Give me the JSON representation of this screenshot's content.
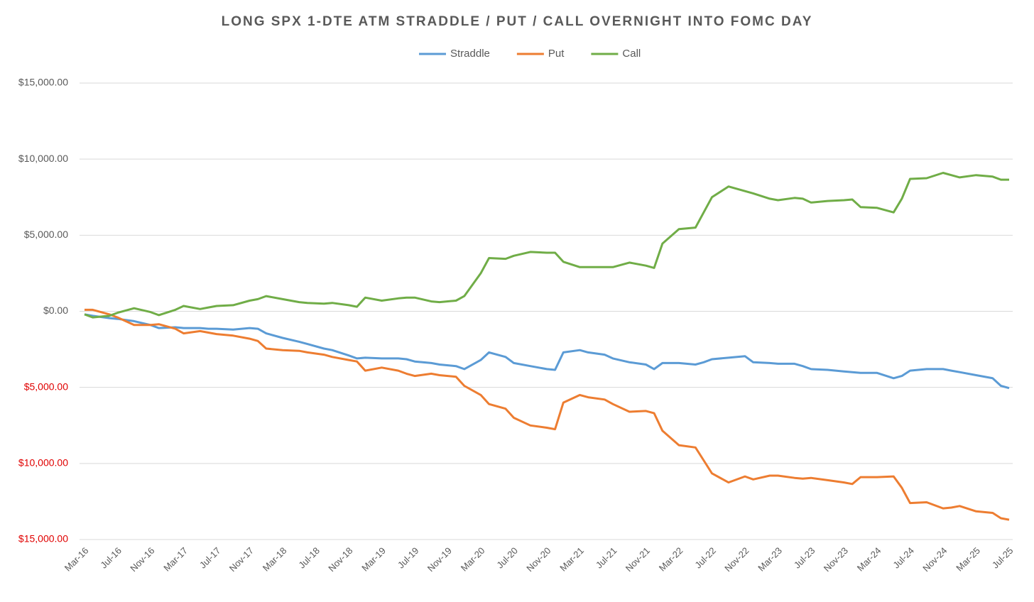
{
  "chart_data": {
    "type": "line",
    "title": "LONG SPX 1-DTE ATM STRADDLE / PUT / CALL OVERNIGHT INTO FOMC DAY",
    "legend": "top",
    "grid": true,
    "x": [
      "2016-03",
      "2016-04",
      "2016-06",
      "2016-07",
      "2016-09",
      "2016-11",
      "2016-12",
      "2017-02",
      "2017-03",
      "2017-05",
      "2017-06",
      "2017-07",
      "2017-09",
      "2017-11",
      "2017-12",
      "2018-01",
      "2018-03",
      "2018-05",
      "2018-06",
      "2018-08",
      "2018-09",
      "2018-11",
      "2018-12",
      "2019-01",
      "2019-03",
      "2019-05",
      "2019-06",
      "2019-07",
      "2019-09",
      "2019-10",
      "2019-12",
      "2020-01",
      "2020-03",
      "2020-04",
      "2020-06",
      "2020-07",
      "2020-09",
      "2020-11",
      "2020-12",
      "2021-01",
      "2021-03",
      "2021-04",
      "2021-06",
      "2021-07",
      "2021-09",
      "2021-11",
      "2021-12",
      "2022-01",
      "2022-03",
      "2022-05",
      "2022-06",
      "2022-07",
      "2022-09",
      "2022-11",
      "2022-12",
      "2023-02",
      "2023-03",
      "2023-05",
      "2023-06",
      "2023-07",
      "2023-09",
      "2023-11",
      "2023-12",
      "2024-01",
      "2024-03",
      "2024-05",
      "2024-06",
      "2024-07",
      "2024-09",
      "2024-11",
      "2024-12",
      "2025-01",
      "2025-03",
      "2025-05",
      "2025-06",
      "2025-07"
    ],
    "xlim": [
      "2016-03",
      "2025-07"
    ],
    "xticks": [
      {
        "value": "2016-03",
        "label": "Mar-16"
      },
      {
        "value": "2016-07",
        "label": "Jul-16"
      },
      {
        "value": "2016-11",
        "label": "Nov-16"
      },
      {
        "value": "2017-03",
        "label": "Mar-17"
      },
      {
        "value": "2017-07",
        "label": "Jul-17"
      },
      {
        "value": "2017-11",
        "label": "Nov-17"
      },
      {
        "value": "2018-03",
        "label": "Mar-18"
      },
      {
        "value": "2018-07",
        "label": "Jul-18"
      },
      {
        "value": "2018-11",
        "label": "Nov-18"
      },
      {
        "value": "2019-03",
        "label": "Mar-19"
      },
      {
        "value": "2019-07",
        "label": "Jul-19"
      },
      {
        "value": "2019-11",
        "label": "Nov-19"
      },
      {
        "value": "2020-03",
        "label": "Mar-20"
      },
      {
        "value": "2020-07",
        "label": "Jul-20"
      },
      {
        "value": "2020-11",
        "label": "Nov-20"
      },
      {
        "value": "2021-03",
        "label": "Mar-21"
      },
      {
        "value": "2021-07",
        "label": "Jul-21"
      },
      {
        "value": "2021-11",
        "label": "Nov-21"
      },
      {
        "value": "2022-03",
        "label": "Mar-22"
      },
      {
        "value": "2022-07",
        "label": "Jul-22"
      },
      {
        "value": "2022-11",
        "label": "Nov-22"
      },
      {
        "value": "2023-03",
        "label": "Mar-23"
      },
      {
        "value": "2023-07",
        "label": "Jul-23"
      },
      {
        "value": "2023-11",
        "label": "Nov-23"
      },
      {
        "value": "2024-03",
        "label": "Mar-24"
      },
      {
        "value": "2024-07",
        "label": "Jul-24"
      },
      {
        "value": "2024-11",
        "label": "Nov-24"
      },
      {
        "value": "2025-03",
        "label": "Mar-25"
      },
      {
        "value": "2025-07",
        "label": "Jul-25"
      }
    ],
    "ylim": [
      -15000,
      15000
    ],
    "yticks": [
      {
        "value": 15000,
        "label": "$15,000.00"
      },
      {
        "value": 10000,
        "label": "$10,000.00"
      },
      {
        "value": 5000,
        "label": "$5,000.00"
      },
      {
        "value": 0,
        "label": "$0.00"
      },
      {
        "value": -5000,
        "label": "$5,000.00"
      },
      {
        "value": -10000,
        "label": "$10,000.00"
      },
      {
        "value": -15000,
        "label": "$15,000.00"
      }
    ],
    "series": [
      {
        "name": "Straddle",
        "color": "#5b9bd5",
        "values": [
          -200,
          -300,
          -450,
          -500,
          -650,
          -900,
          -1100,
          -1050,
          -1100,
          -1100,
          -1150,
          -1150,
          -1200,
          -1100,
          -1150,
          -1450,
          -1750,
          -2000,
          -2150,
          -2450,
          -2550,
          -2900,
          -3100,
          -3050,
          -3100,
          -3100,
          -3150,
          -3300,
          -3400,
          -3500,
          -3600,
          -3800,
          -3200,
          -2700,
          -3000,
          -3400,
          -3600,
          -3800,
          -3850,
          -2700,
          -2550,
          -2700,
          -2850,
          -3100,
          -3350,
          -3500,
          -3800,
          -3400,
          -3400,
          -3500,
          -3350,
          -3150,
          -3050,
          -2950,
          -3350,
          -3400,
          -3450,
          -3450,
          -3600,
          -3800,
          -3850,
          -3950,
          -4000,
          -4050,
          -4050,
          -4400,
          -4250,
          -3900,
          -3800,
          -3800,
          -3900,
          -4000,
          -4200,
          -4400,
          -4900,
          -5050
        ]
      },
      {
        "name": "Put",
        "color": "#ed7d31",
        "values": [
          100,
          100,
          -200,
          -400,
          -900,
          -900,
          -850,
          -1150,
          -1450,
          -1300,
          -1400,
          -1500,
          -1600,
          -1800,
          -1950,
          -2450,
          -2550,
          -2600,
          -2700,
          -2850,
          -3000,
          -3200,
          -3300,
          -3900,
          -3700,
          -3900,
          -4100,
          -4250,
          -4100,
          -4200,
          -4300,
          -4900,
          -5500,
          -6100,
          -6400,
          -7000,
          -7500,
          -7650,
          -7750,
          -6000,
          -5500,
          -5650,
          -5800,
          -6100,
          -6600,
          -6550,
          -6700,
          -7850,
          -8800,
          -8950,
          -9800,
          -10650,
          -11250,
          -10850,
          -11050,
          -10800,
          -10800,
          -10950,
          -11000,
          -10950,
          -11100,
          -11250,
          -11350,
          -10900,
          -10900,
          -10850,
          -11600,
          -12600,
          -12550,
          -12950,
          -12900,
          -12800,
          -13150,
          -13250,
          -13600,
          -13700
        ]
      },
      {
        "name": "Call",
        "color": "#70ad47",
        "values": [
          -200,
          -400,
          -300,
          -100,
          200,
          -50,
          -250,
          100,
          350,
          150,
          250,
          350,
          400,
          700,
          800,
          1000,
          800,
          600,
          550,
          500,
          550,
          400,
          300,
          900,
          700,
          850,
          900,
          900,
          650,
          600,
          700,
          1000,
          2500,
          3500,
          3450,
          3650,
          3900,
          3850,
          3850,
          3250,
          2900,
          2900,
          2900,
          2900,
          3200,
          3000,
          2850,
          4450,
          5400,
          5500,
          6500,
          7500,
          8200,
          7900,
          7750,
          7400,
          7300,
          7450,
          7400,
          7150,
          7250,
          7300,
          7350,
          6850,
          6800,
          6500,
          7400,
          8700,
          8750,
          9100,
          8950,
          8800,
          8950,
          8850,
          8650,
          8650
        ]
      }
    ]
  }
}
